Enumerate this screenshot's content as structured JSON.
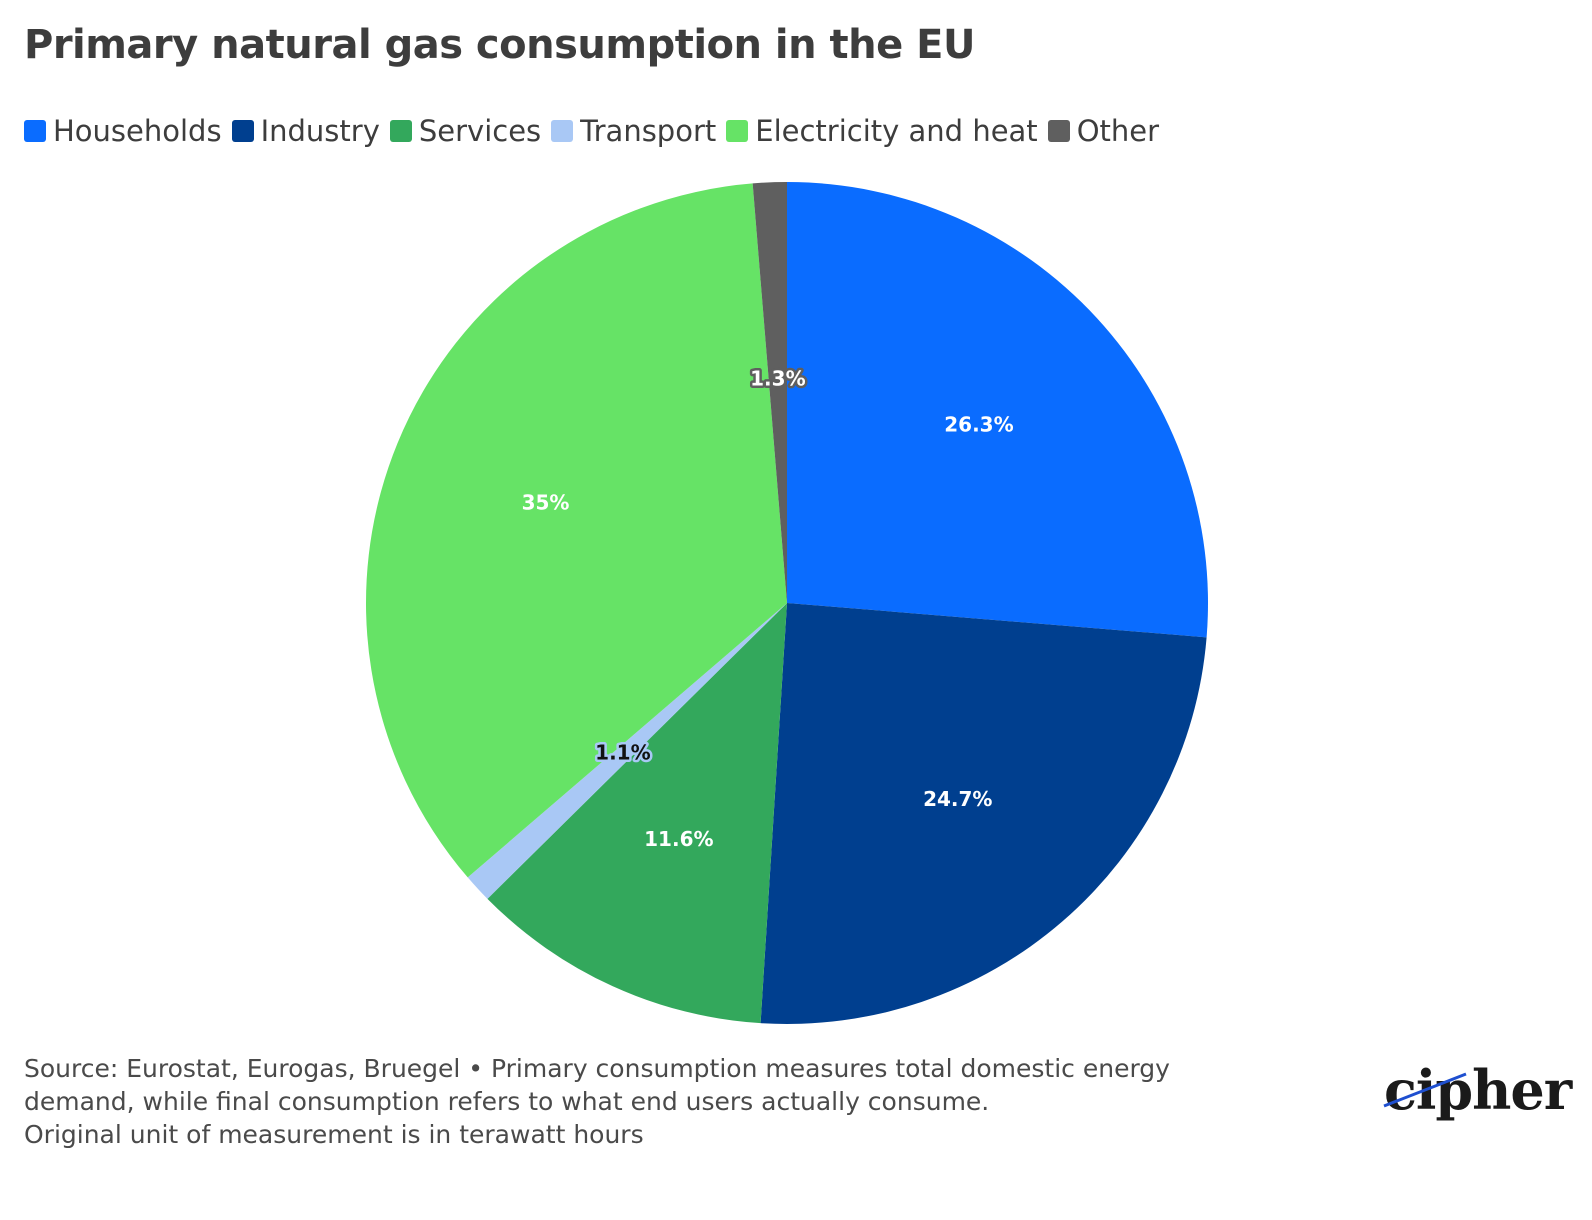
{
  "title": "Primary natural gas consumption in the EU",
  "legend": [
    {
      "label": "Households",
      "color": "#0a6cff"
    },
    {
      "label": "Industry",
      "color": "#003f8f"
    },
    {
      "label": "Services",
      "color": "#33a85c"
    },
    {
      "label": "Transport",
      "color": "#a9c8f5"
    },
    {
      "label": "Electricity and heat",
      "color": "#66e366"
    },
    {
      "label": "Other",
      "color": "#5f5f5f"
    }
  ],
  "chart_data": {
    "type": "pie",
    "title": "Primary natural gas consumption in the EU",
    "slices": [
      {
        "name": "Households",
        "value": 26.3,
        "label": "26.3%",
        "color": "#0a6cff",
        "label_color": "#ffffff"
      },
      {
        "name": "Industry",
        "value": 24.7,
        "label": "24.7%",
        "color": "#003f8f",
        "label_color": "#ffffff"
      },
      {
        "name": "Services",
        "value": 11.6,
        "label": "11.6%",
        "color": "#33a85c",
        "label_color": "#ffffff"
      },
      {
        "name": "Transport",
        "value": 1.1,
        "label": "1.1%",
        "color": "#a9c8f5",
        "label_color": "#111111"
      },
      {
        "name": "Electricity and heat",
        "value": 35,
        "label": "35%",
        "color": "#66e366",
        "label_color": "#ffffff"
      },
      {
        "name": "Other",
        "value": 1.3,
        "label": "1.3%",
        "color": "#5f5f5f",
        "label_color": "#ffffff"
      }
    ],
    "start": "12 o'clock",
    "direction": "clockwise"
  },
  "footer": {
    "line1": "Source: Eurostat, Eurogas, Bruegel • Primary consumption measures total domestic energy",
    "line2": "demand, while final consumption refers to what end users actually consume.",
    "line3": "Original unit of measurement is in terawatt hours"
  },
  "logo": {
    "text": "cipher"
  }
}
